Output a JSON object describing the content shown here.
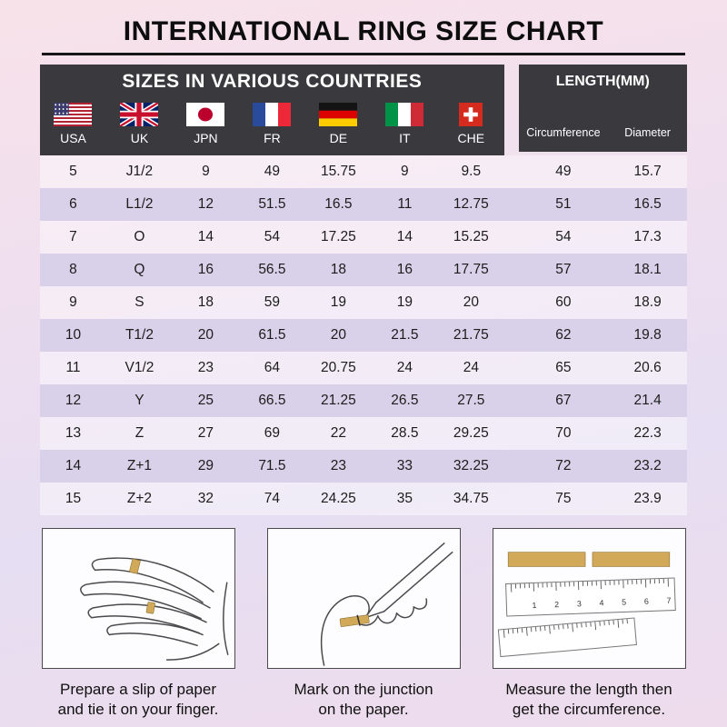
{
  "page": {
    "title": "INTERNATIONAL RING SIZE CHART"
  },
  "table": {
    "countries_header": "SIZES IN VARIOUS COUNTRIES",
    "length_header": "LENGTH(MM)"
  },
  "chart_data": {
    "type": "table",
    "title": "INTERNATIONAL RING SIZE CHART",
    "column_groups": [
      {
        "label": "SIZES IN VARIOUS COUNTRIES",
        "span": 7
      },
      {
        "label": "LENGTH(MM)",
        "span": 2
      }
    ],
    "columns": [
      "USA",
      "UK",
      "JPN",
      "FR",
      "DE",
      "IT",
      "CHE",
      "Circumference",
      "Diameter"
    ],
    "rows": [
      [
        "5",
        "J1/2",
        "9",
        "49",
        "15.75",
        "9",
        "9.5",
        "49",
        "15.7"
      ],
      [
        "6",
        "L1/2",
        "12",
        "51.5",
        "16.5",
        "11",
        "12.75",
        "51",
        "16.5"
      ],
      [
        "7",
        "O",
        "14",
        "54",
        "17.25",
        "14",
        "15.25",
        "54",
        "17.3"
      ],
      [
        "8",
        "Q",
        "16",
        "56.5",
        "18",
        "16",
        "17.75",
        "57",
        "18.1"
      ],
      [
        "9",
        "S",
        "18",
        "59",
        "19",
        "19",
        "20",
        "60",
        "18.9"
      ],
      [
        "10",
        "T1/2",
        "20",
        "61.5",
        "20",
        "21.5",
        "21.75",
        "62",
        "19.8"
      ],
      [
        "11",
        "V1/2",
        "23",
        "64",
        "20.75",
        "24",
        "24",
        "65",
        "20.6"
      ],
      [
        "12",
        "Y",
        "25",
        "66.5",
        "21.25",
        "26.5",
        "27.5",
        "67",
        "21.4"
      ],
      [
        "13",
        "Z",
        "27",
        "69",
        "22",
        "28.5",
        "29.25",
        "70",
        "22.3"
      ],
      [
        "14",
        "Z+1",
        "29",
        "71.5",
        "23",
        "33",
        "32.25",
        "72",
        "23.2"
      ],
      [
        "15",
        "Z+2",
        "32",
        "74",
        "24.25",
        "35",
        "34.75",
        "75",
        "23.9"
      ]
    ]
  },
  "steps": [
    {
      "caption": "Prepare a slip of paper\nand tie it on your finger."
    },
    {
      "caption": "Mark on the junction\non the paper."
    },
    {
      "caption": "Measure the length then\nget the circumference.",
      "ruler_numbers": [
        "1",
        "2",
        "3",
        "4",
        "5",
        "6",
        "7"
      ]
    }
  ],
  "colors": {
    "header_bg": "#3a393e",
    "row_alt": "#d9d1e9",
    "paper_strip": "#d2a958",
    "background_top": "#f8e2ea",
    "background_bottom": "#e6def2"
  }
}
